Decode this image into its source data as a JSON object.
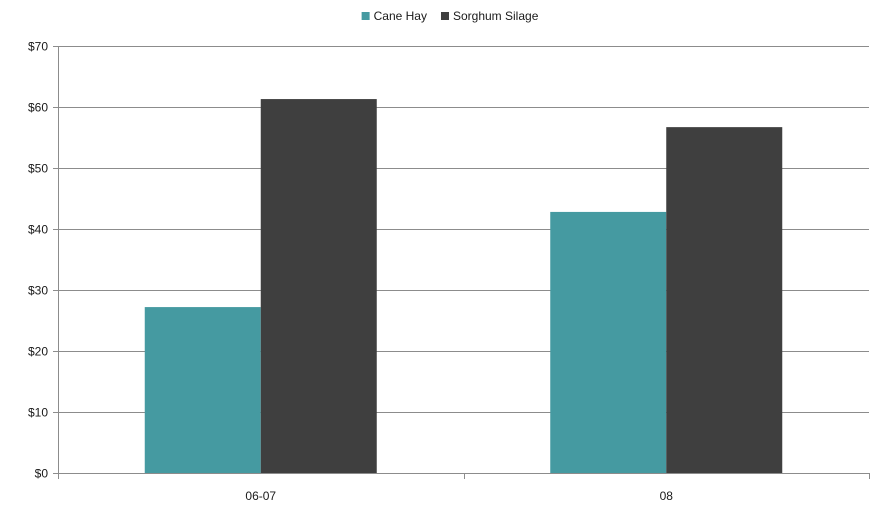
{
  "chart_data": {
    "type": "bar",
    "title": "",
    "xlabel": "",
    "ylabel": "",
    "categories": [
      "06-07",
      "08"
    ],
    "series": [
      {
        "name": "Cane Hay",
        "values": [
          27.2,
          42.8
        ],
        "color": "#459aa1"
      },
      {
        "name": "Sorghum Silage",
        "values": [
          61.3,
          56.7
        ],
        "color": "#3f3f3f"
      }
    ],
    "ylim": [
      0,
      70
    ],
    "yticks": [
      0,
      10,
      20,
      30,
      40,
      50,
      60,
      70
    ],
    "ytick_labels": [
      "$0",
      "$10",
      "$20",
      "$30",
      "$40",
      "$50",
      "$60",
      "$70"
    ],
    "grid": true,
    "legend_position": "top-center"
  }
}
